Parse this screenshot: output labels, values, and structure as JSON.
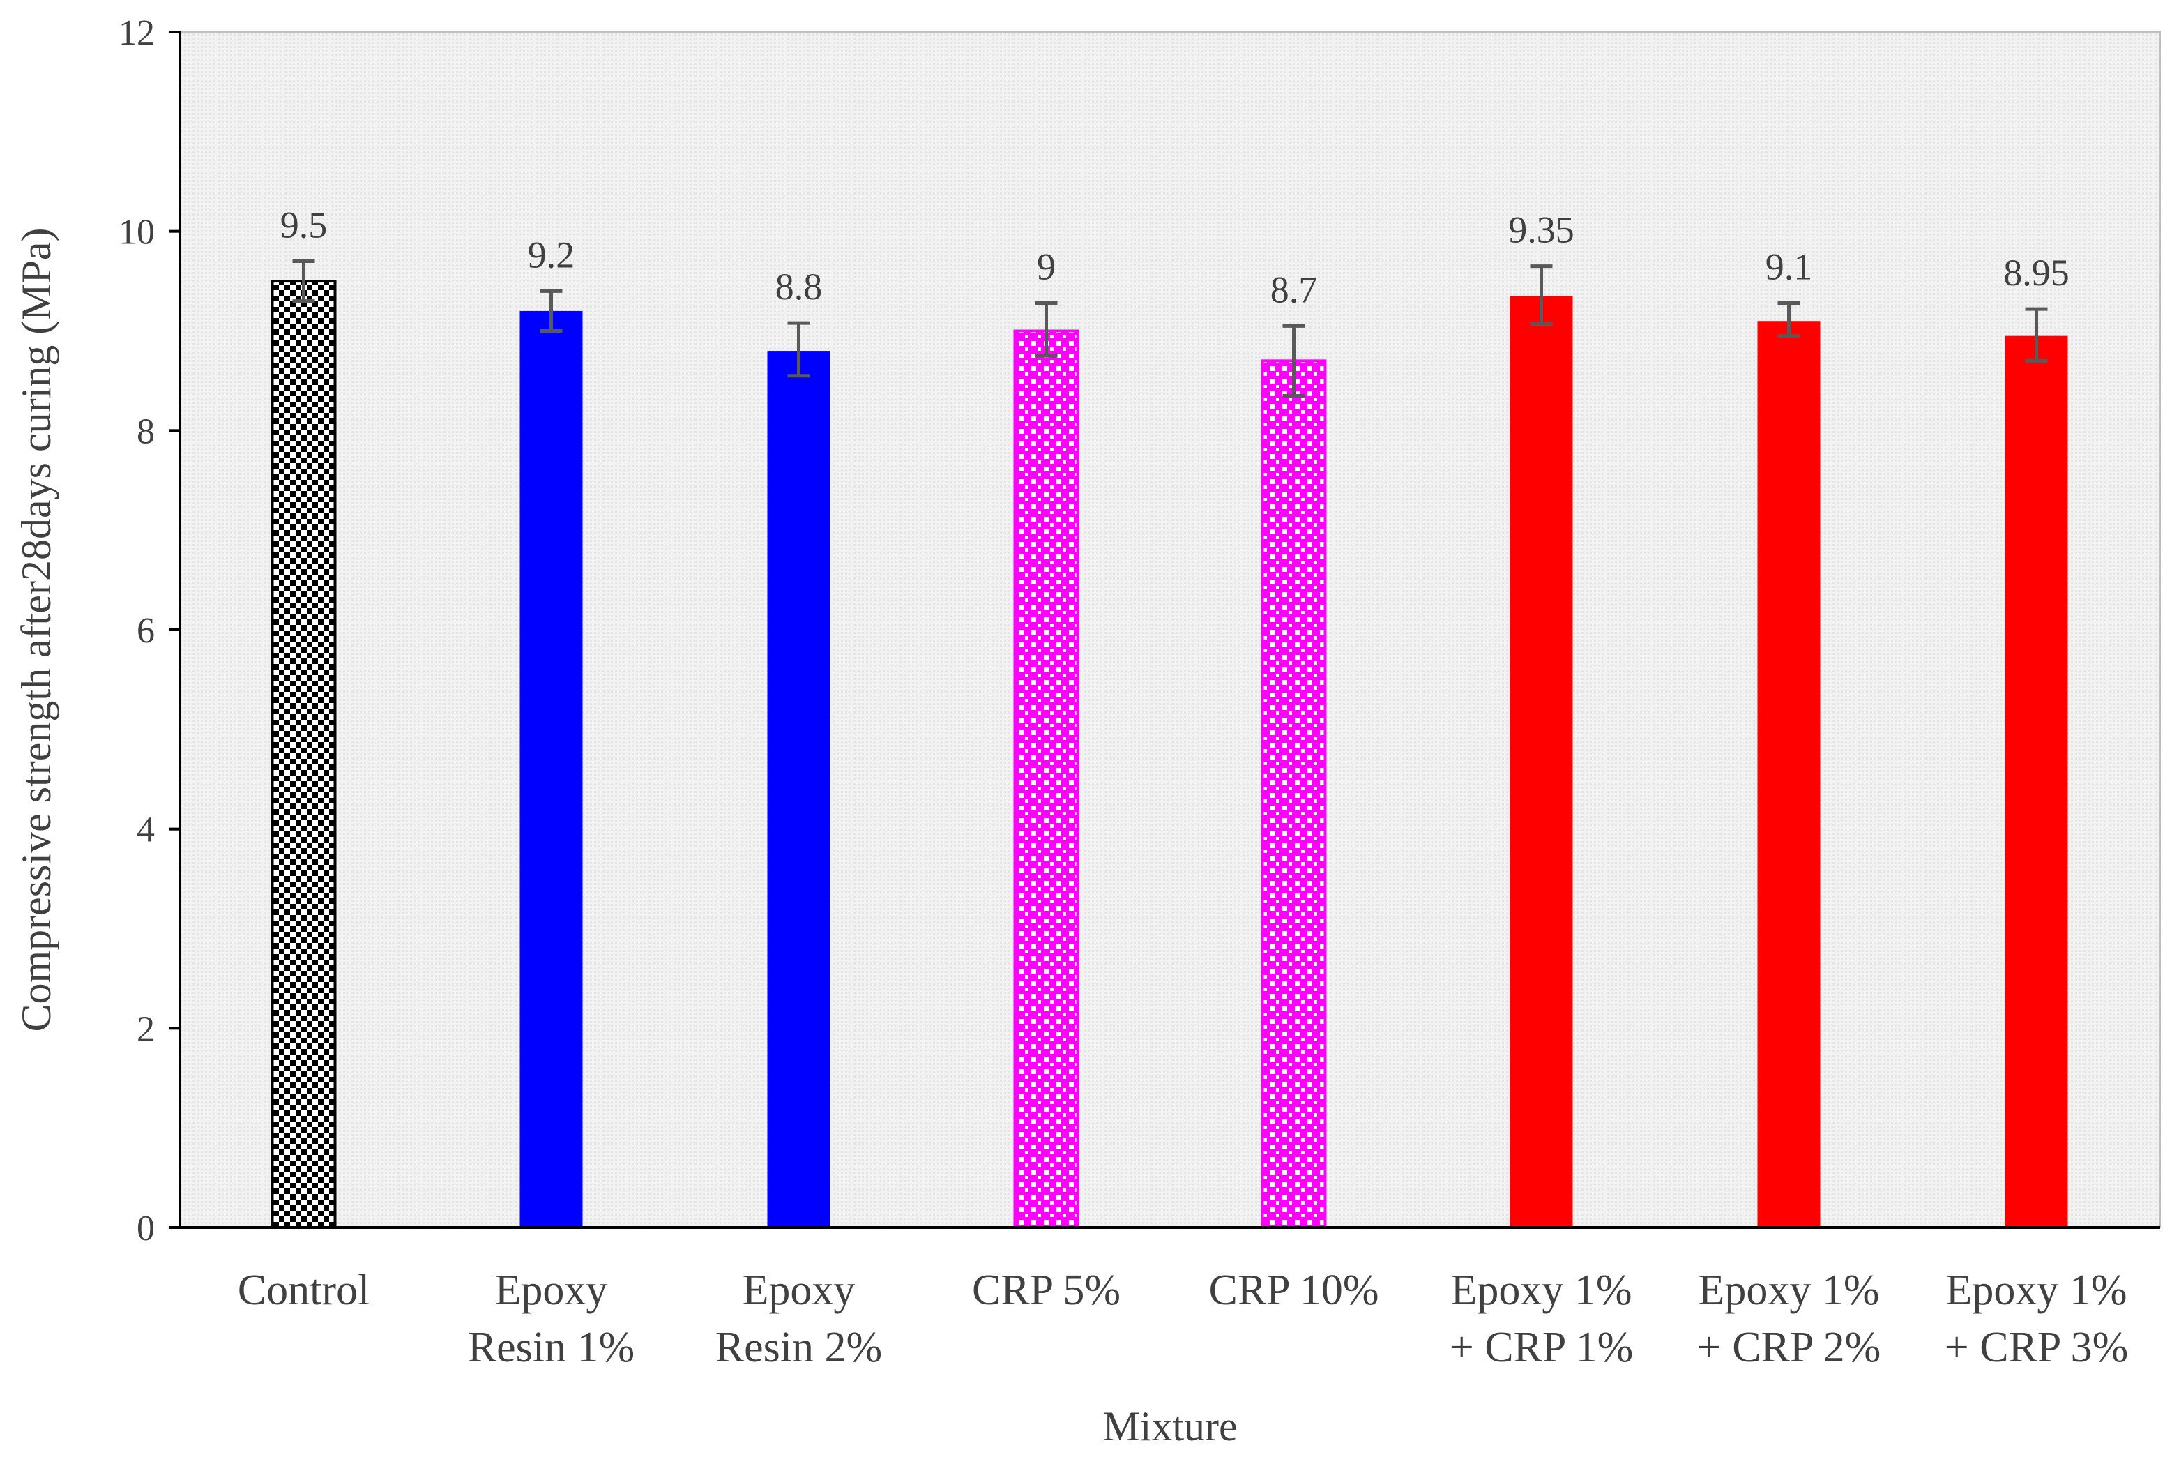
{
  "chart_data": {
    "type": "bar",
    "title": "",
    "xlabel": "Mixture",
    "ylabel": "Compressive strength after28days curing (MPa)",
    "ylim": [
      0,
      12
    ],
    "yticks": [
      0,
      2,
      4,
      6,
      8,
      10,
      12
    ],
    "grid": false,
    "legend": "none",
    "categories": [
      [
        "Control"
      ],
      [
        "Epoxy",
        "Resin 1%"
      ],
      [
        "Epoxy",
        "Resin 2%"
      ],
      [
        "CRP 5%"
      ],
      [
        "CRP 10%"
      ],
      [
        "Epoxy 1%",
        "+ CRP 1%"
      ],
      [
        "Epoxy 1%",
        "+ CRP 2%"
      ],
      [
        "Epoxy 1%",
        "+ CRP 3%"
      ]
    ],
    "values": [
      9.5,
      9.2,
      8.8,
      9,
      8.7,
      9.35,
      9.1,
      8.95
    ],
    "value_labels": [
      "9.5",
      "9.2",
      "8.8",
      "9",
      "8.7",
      "9.35",
      "9.1",
      "8.95"
    ],
    "error_low": [
      0.2,
      0.2,
      0.25,
      0.25,
      0.35,
      0.28,
      0.15,
      0.25
    ],
    "error_high": [
      0.2,
      0.2,
      0.28,
      0.28,
      0.35,
      0.3,
      0.18,
      0.27
    ],
    "bar_styles": [
      "checker",
      "solid",
      "solid",
      "dots",
      "dots",
      "solid",
      "solid",
      "solid"
    ],
    "bar_colors": [
      "#000000",
      "#0000ff",
      "#0000ff",
      "#ff00ff",
      "#ff00ff",
      "#ff0000",
      "#ff0000",
      "#ff0000"
    ]
  }
}
